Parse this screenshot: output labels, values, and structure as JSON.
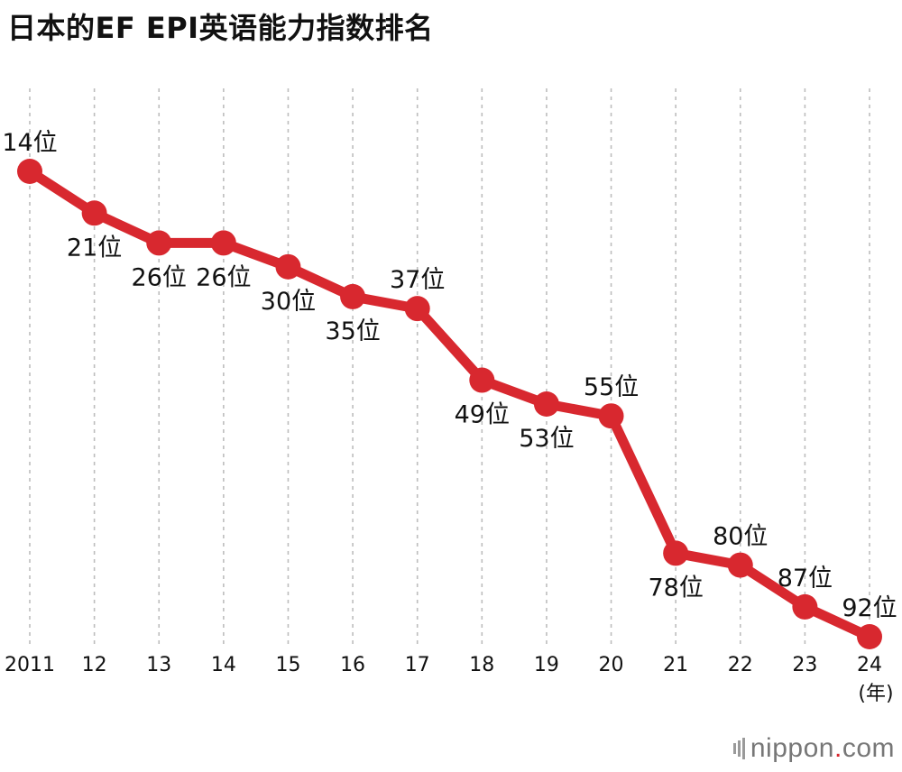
{
  "title": "日本的EF EPI英语能力指数排名",
  "x_unit": "(年)",
  "rank_suffix": "位",
  "brand": {
    "name_left": "nippon",
    "name_dot": ".",
    "name_right": "com"
  },
  "colors": {
    "line": "#d8282f",
    "grid": "#bdbdbd",
    "brand_dot": "#d8262e"
  },
  "chart_data": {
    "type": "line",
    "title": "日本的EF EPI英语能力指数排名",
    "xlabel": "(年)",
    "ylabel": "",
    "y_inverted": true,
    "ylim": [
      14,
      92
    ],
    "grid": "vertical dashed",
    "categories": [
      "2011",
      "12",
      "13",
      "14",
      "15",
      "16",
      "17",
      "18",
      "19",
      "20",
      "21",
      "22",
      "23",
      "24"
    ],
    "series": [
      {
        "values": [
          14,
          21,
          26,
          26,
          30,
          35,
          37,
          49,
          53,
          55,
          78,
          80,
          87,
          92
        ],
        "labels": [
          "14位",
          "21位",
          "26位",
          "26位",
          "30位",
          "35位",
          "37位",
          "49位",
          "53位",
          "55位",
          "78位",
          "80位",
          "87位",
          "92位"
        ],
        "label_position": [
          "above",
          "below",
          "below",
          "below",
          "below",
          "below",
          "above",
          "below",
          "below",
          "above",
          "below",
          "above",
          "above",
          "above"
        ]
      }
    ]
  }
}
